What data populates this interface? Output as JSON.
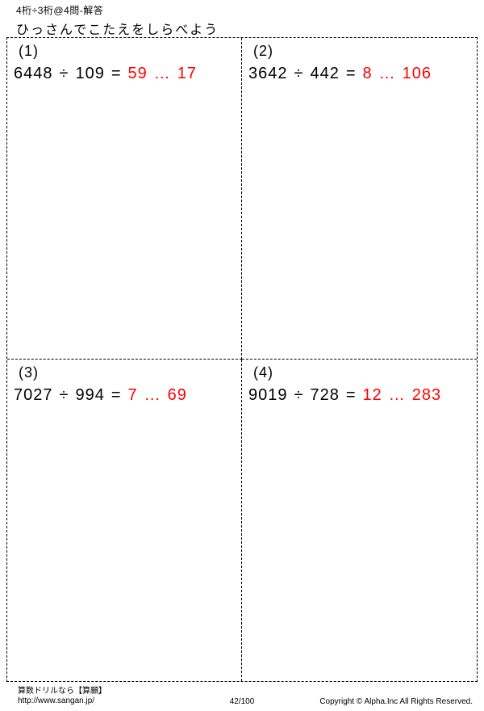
{
  "header": {
    "small_title": "4桁÷3桁@4問-解答",
    "instruction": "ひっさんでこたえをしらべよう"
  },
  "problems": [
    {
      "num_label": "(1)",
      "dividend": "6448",
      "divisor": "109",
      "quotient": "59",
      "remainder": "17"
    },
    {
      "num_label": "(2)",
      "dividend": "3642",
      "divisor": "442",
      "quotient": "8",
      "remainder": "106"
    },
    {
      "num_label": "(3)",
      "dividend": "7027",
      "divisor": "994",
      "quotient": "7",
      "remainder": "69"
    },
    {
      "num_label": "(4)",
      "dividend": "9019",
      "divisor": "728",
      "quotient": "12",
      "remainder": "283"
    }
  ],
  "symbols": {
    "divide": "÷",
    "equals": "=",
    "ellipsis": "…"
  },
  "footer": {
    "line1": "算数ドリルなら【算願】",
    "line2": "http://www.sangan.jp/",
    "page": "42/100",
    "copyright": "Copyright © Alpha.Inc All Rights Reserved."
  },
  "style": {
    "answer_color": "#ff0000",
    "text_color": "#000000",
    "background_color": "#ffffff",
    "border_style": "dashed",
    "font_weight": 300
  }
}
